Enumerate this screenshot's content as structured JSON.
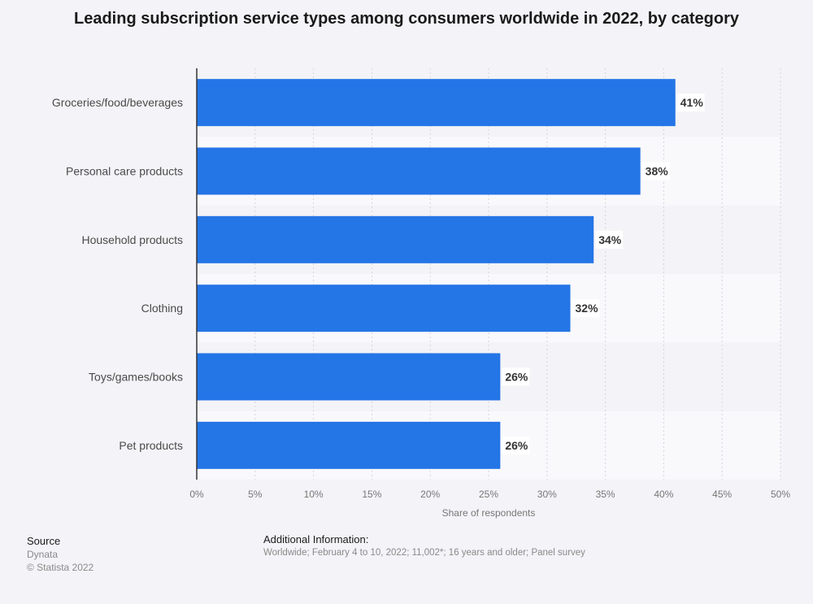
{
  "chart_data": {
    "type": "bar",
    "orientation": "horizontal",
    "title": "Leading subscription service types among consumers worldwide in 2022, by category",
    "categories": [
      "Groceries/food/beverages",
      "Personal care products",
      "Household products",
      "Clothing",
      "Toys/games/books",
      "Pet products"
    ],
    "values": [
      41,
      38,
      34,
      32,
      26,
      26
    ],
    "value_labels": [
      "41%",
      "38%",
      "34%",
      "32%",
      "26%",
      "26%"
    ],
    "xlabel": "Share of respondents",
    "ylabel": "",
    "xlim": [
      0,
      50
    ],
    "xticks": [
      0,
      5,
      10,
      15,
      20,
      25,
      30,
      35,
      40,
      45,
      50
    ],
    "xtick_labels": [
      "0%",
      "5%",
      "10%",
      "15%",
      "20%",
      "25%",
      "30%",
      "35%",
      "40%",
      "45%",
      "50%"
    ],
    "grid": true,
    "bar_color": "#2475e6"
  },
  "source": {
    "heading": "Source",
    "name": "Dynata",
    "copyright": "© Statista 2022"
  },
  "additional_info": {
    "heading": "Additional Information:",
    "text": "Worldwide; February 4 to 10, 2022; 11,002*; 16 years and older; Panel survey"
  }
}
